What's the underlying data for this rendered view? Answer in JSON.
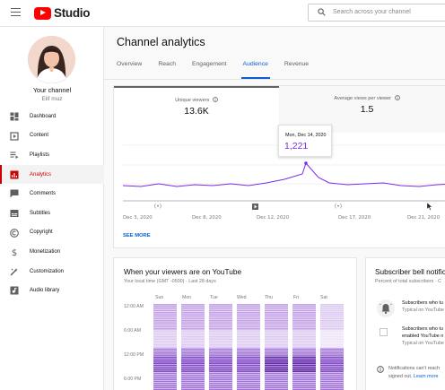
{
  "app": {
    "brand": "Studio",
    "search_placeholder": "Search across your channel"
  },
  "sidebar": {
    "channel_label": "Your channel",
    "channel_name": "Elif muz",
    "items": [
      {
        "label": "Dashboard",
        "icon": "dashboard-icon"
      },
      {
        "label": "Content",
        "icon": "content-icon"
      },
      {
        "label": "Playlists",
        "icon": "playlists-icon"
      },
      {
        "label": "Analytics",
        "icon": "analytics-icon",
        "active": true
      },
      {
        "label": "Comments",
        "icon": "comments-icon"
      },
      {
        "label": "Subtitles",
        "icon": "subtitles-icon"
      },
      {
        "label": "Copyright",
        "icon": "copyright-icon"
      },
      {
        "label": "Monetization",
        "icon": "monetization-icon"
      },
      {
        "label": "Customization",
        "icon": "customization-icon"
      },
      {
        "label": "Audio library",
        "icon": "audio-library-icon"
      }
    ]
  },
  "main": {
    "title": "Channel analytics",
    "tabs": [
      {
        "label": "Overview"
      },
      {
        "label": "Reach"
      },
      {
        "label": "Engagement"
      },
      {
        "label": "Audience",
        "active": true
      },
      {
        "label": "Revenue"
      }
    ]
  },
  "metrics": {
    "unique_viewers_label": "Unique viewers",
    "unique_viewers_value": "13.6K",
    "avg_views_label": "Average views per viewer",
    "avg_views_value": "1.5"
  },
  "chart": {
    "x_labels": [
      "Dec 3, 2020",
      "Dec 8, 2020",
      "Dec 12, 2020",
      "Dec 17, 2020",
      "Dec 21, 2020"
    ],
    "tooltip_date": "Mon, Dec 14, 2020",
    "tooltip_value": "1,221",
    "see_more": "SEE MORE",
    "line_color": "#7d2ae8"
  },
  "heatmap": {
    "title": "When your viewers are on YouTube",
    "subtitle": "Your local time (GMT -0500) · Last 28 days",
    "days": [
      "Sun",
      "Mon",
      "Tue",
      "Wed",
      "Thu",
      "Fri",
      "Sat"
    ],
    "times": [
      "12:00 AM",
      "6:00 AM",
      "12:00 PM",
      "6:00 PM"
    ]
  },
  "bell": {
    "title": "Subscriber bell notific",
    "subtitle": "Percent of total subscribers · C",
    "item1_line1": "Subscribers who tu",
    "item1_line2": "Typical on YouTube",
    "item2_line1": "Subscribers who tu",
    "item2_line2": "enabled YouTube n",
    "item2_line3": "Typical on YouTube",
    "note_line1": "Notifications can't reach",
    "note_prefix": "signed out.",
    "note_link": "Learn more"
  }
}
